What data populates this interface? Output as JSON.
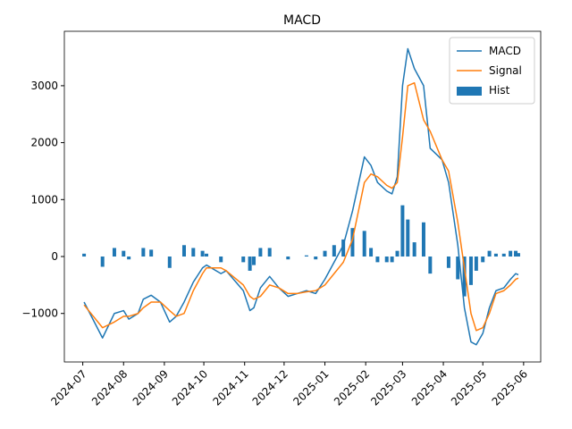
{
  "chart_data": {
    "type": "line",
    "title": "MACD",
    "x": [
      "2024-07-02",
      "2024-07-16",
      "2024-07-25",
      "2024-08-01",
      "2024-08-05",
      "2024-08-12",
      "2024-08-16",
      "2024-08-22",
      "2024-08-29",
      "2024-09-05",
      "2024-09-10",
      "2024-09-16",
      "2024-09-23",
      "2024-09-30",
      "2024-10-03",
      "2024-10-14",
      "2024-10-18",
      "2024-10-31",
      "2024-11-05",
      "2024-11-08",
      "2024-11-13",
      "2024-11-20",
      "2024-11-27",
      "2024-12-04",
      "2024-12-11",
      "2024-12-18",
      "2024-12-25",
      "2025-01-01",
      "2025-01-08",
      "2025-01-15",
      "2025-01-22",
      "2025-01-31",
      "2025-02-05",
      "2025-02-10",
      "2025-02-17",
      "2025-02-21",
      "2025-02-25",
      "2025-03-01",
      "2025-03-05",
      "2025-03-10",
      "2025-03-17",
      "2025-03-22",
      "2025-03-31",
      "2025-04-05",
      "2025-04-12",
      "2025-04-17",
      "2025-04-22",
      "2025-04-26",
      "2025-05-01",
      "2025-05-06",
      "2025-05-11",
      "2025-05-17",
      "2025-05-22",
      "2025-05-26",
      "2025-05-28"
    ],
    "series": [
      {
        "name": "MACD",
        "type": "line",
        "color": "#1f77b4",
        "values": [
          -800,
          -1430,
          -1000,
          -950,
          -1100,
          -1000,
          -750,
          -680,
          -800,
          -1150,
          -1050,
          -800,
          -450,
          -200,
          -150,
          -300,
          -250,
          -600,
          -950,
          -900,
          -550,
          -350,
          -550,
          -700,
          -650,
          -600,
          -650,
          -400,
          -100,
          200,
          800,
          1750,
          1600,
          1300,
          1150,
          1100,
          1400,
          3000,
          3650,
          3300,
          3000,
          1900,
          1700,
          1300,
          200,
          -900,
          -1500,
          -1550,
          -1350,
          -900,
          -600,
          -550,
          -400,
          -300,
          -320
        ]
      },
      {
        "name": "Signal",
        "type": "line",
        "color": "#ff7f0e",
        "values": [
          -850,
          -1250,
          -1150,
          -1050,
          -1050,
          -1000,
          -900,
          -800,
          -800,
          -950,
          -1050,
          -1000,
          -600,
          -300,
          -200,
          -200,
          -250,
          -500,
          -700,
          -750,
          -700,
          -500,
          -550,
          -650,
          -650,
          -620,
          -600,
          -500,
          -300,
          -100,
          300,
          1300,
          1450,
          1400,
          1250,
          1200,
          1300,
          2100,
          3000,
          3050,
          2400,
          2200,
          1700,
          1500,
          600,
          -200,
          -1000,
          -1300,
          -1250,
          -1000,
          -650,
          -600,
          -500,
          -400,
          -380
        ]
      },
      {
        "name": "Hist",
        "type": "bar",
        "color": "#1f77b4",
        "values": [
          50,
          -180,
          150,
          100,
          -50,
          0,
          150,
          120,
          0,
          -200,
          0,
          200,
          150,
          100,
          50,
          -100,
          0,
          -100,
          -250,
          -150,
          150,
          150,
          0,
          -50,
          0,
          20,
          -50,
          100,
          200,
          300,
          500,
          450,
          150,
          -100,
          -100,
          -100,
          100,
          900,
          650,
          250,
          600,
          -300,
          0,
          -200,
          -400,
          -700,
          -500,
          -250,
          -100,
          100,
          50,
          50,
          100,
          100,
          60
        ]
      }
    ],
    "xlim": [
      "2024-06-17",
      "2025-06-14"
    ],
    "xticks": [
      {
        "value": "2024-07-01",
        "label": "2024-07"
      },
      {
        "value": "2024-08-01",
        "label": "2024-08"
      },
      {
        "value": "2024-09-01",
        "label": "2024-09"
      },
      {
        "value": "2024-10-01",
        "label": "2024-10"
      },
      {
        "value": "2024-11-01",
        "label": "2024-11"
      },
      {
        "value": "2024-12-01",
        "label": "2024-12"
      },
      {
        "value": "2025-01-01",
        "label": "2025-01"
      },
      {
        "value": "2025-02-01",
        "label": "2025-02"
      },
      {
        "value": "2025-03-01",
        "label": "2025-03"
      },
      {
        "value": "2025-04-01",
        "label": "2025-04"
      },
      {
        "value": "2025-05-01",
        "label": "2025-05"
      },
      {
        "value": "2025-06-01",
        "label": "2025-06"
      }
    ],
    "ylim": [
      -1852,
      3956
    ],
    "yticks": [
      {
        "value": -1000,
        "label": "−1000"
      },
      0,
      1000,
      2000,
      3000
    ],
    "grid": false,
    "legend": "upper right"
  }
}
